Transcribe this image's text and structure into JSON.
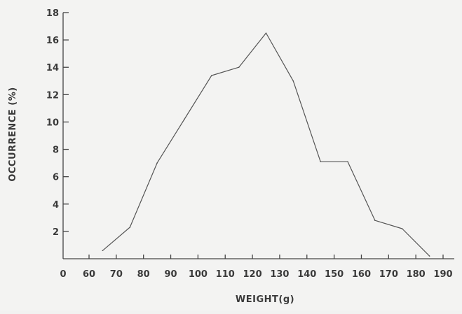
{
  "chart_data": {
    "type": "line",
    "title": "",
    "xlabel": "WEIGHT(g)",
    "ylabel": "OCCURRENCE (%)",
    "xlim": [
      50,
      190
    ],
    "ylim": [
      0,
      18
    ],
    "grid": false,
    "x_tick_labels": [
      "0",
      "60",
      "70",
      "80",
      "90",
      "100",
      "110",
      "120",
      "130",
      "140",
      "150",
      "160",
      "170",
      "180",
      "190"
    ],
    "y_tick_labels": [
      "2",
      "4",
      "6",
      "8",
      "10",
      "12",
      "14",
      "16",
      "18"
    ],
    "x_tick_values": [
      60,
      70,
      80,
      90,
      100,
      110,
      120,
      130,
      140,
      150,
      160,
      170,
      180,
      190
    ],
    "y_tick_values": [
      2,
      4,
      6,
      8,
      10,
      12,
      14,
      16,
      18
    ],
    "x_axis_origin_label": "0",
    "series": [
      {
        "x": [
          65,
          75,
          85,
          95,
          105,
          115,
          125,
          135,
          145,
          155,
          165,
          175,
          185
        ],
        "y": [
          0.6,
          2.3,
          7.0,
          10.2,
          13.4,
          14.0,
          16.5,
          13.0,
          7.1,
          7.1,
          2.8,
          2.2,
          0.2
        ],
        "color": "#555555"
      }
    ]
  }
}
